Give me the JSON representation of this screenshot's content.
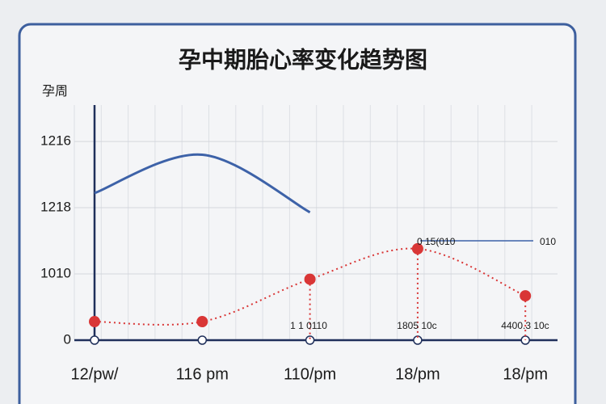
{
  "chart_data": {
    "type": "line",
    "title": "孕中期胎心率变化趋势图",
    "y_label": "孕周",
    "categories": [
      "12/pw/",
      "116 pm",
      "110/pm",
      "18/pm",
      "18/pm"
    ],
    "ylim": [
      0,
      3.55
    ],
    "yticks": [
      0,
      {
        "value": 1,
        "label": "1010"
      },
      {
        "value": 2,
        "label": "1218"
      },
      {
        "value": 3,
        "label": "1216"
      }
    ],
    "grid": true,
    "series": [
      {
        "color": "#d93636",
        "style": "dotted",
        "values": [
          0.28,
          0.28,
          0.92,
          1.38,
          0.67
        ]
      },
      {
        "color": "#3d62a8",
        "style": "solid",
        "values": [
          2.22,
          2.8,
          1.93,
          null,
          null
        ]
      }
    ],
    "annotations": [
      "1 1 0110",
      "1805 10c",
      "4400.3 10c",
      "0 15(010",
      "010"
    ]
  }
}
